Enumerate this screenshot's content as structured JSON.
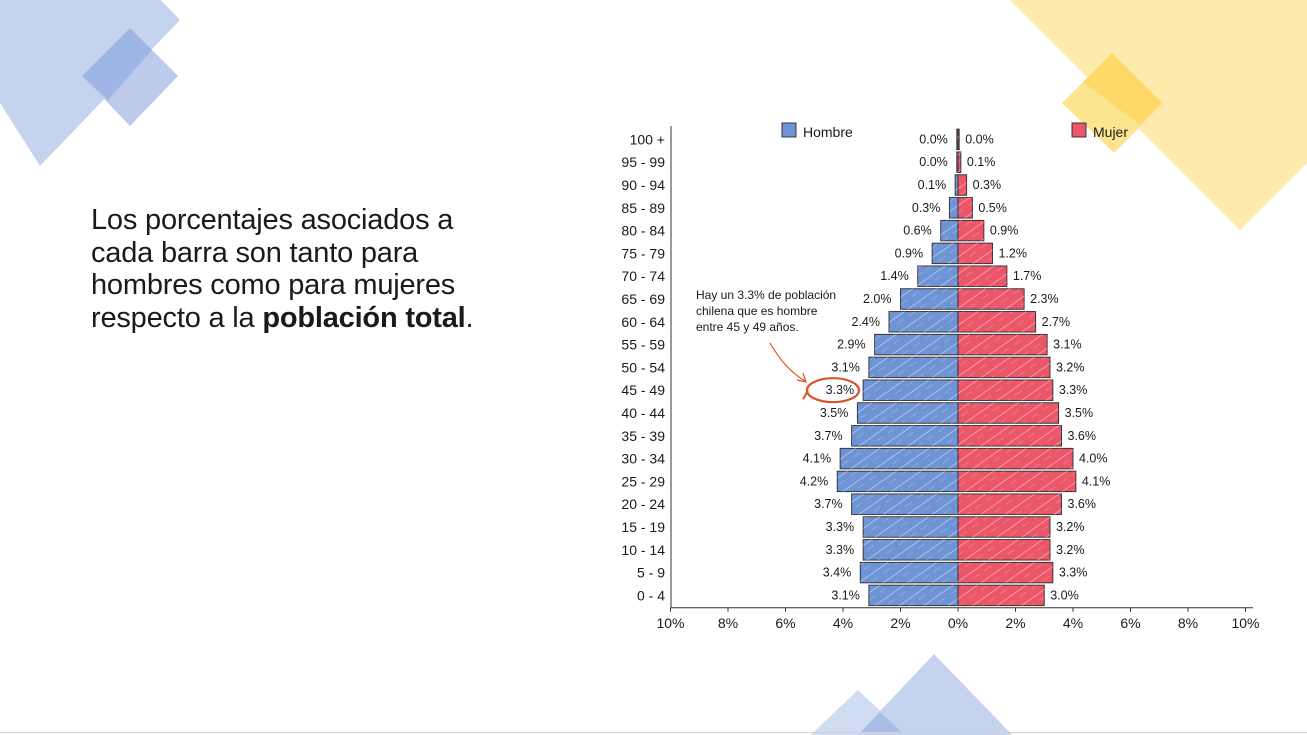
{
  "slide": {
    "text_before": "Los porcentajes asociados a cada barra son tanto para hombres como para mujeres respecto a la ",
    "text_bold": "población total",
    "text_after": "."
  },
  "colors": {
    "male": "#6f94d6",
    "female": "#eb5668",
    "deco_blue": "#a9bde6",
    "deco_blue_dark": "#8aa5de",
    "deco_yellow": "#fde697",
    "deco_yellow_dark": "#fed96a",
    "annotation": "#e0502a"
  },
  "chart_data": {
    "type": "bar",
    "orientation": "horizontal-pyramid",
    "categories": [
      "0 - 4",
      "5 - 9",
      "10 - 14",
      "15 - 19",
      "20 - 24",
      "25 - 29",
      "30 - 34",
      "35 - 39",
      "40 - 44",
      "45 - 49",
      "50 - 54",
      "55 - 59",
      "60 - 64",
      "65 - 69",
      "70 - 74",
      "75 - 79",
      "80 - 84",
      "85 - 89",
      "90 - 94",
      "95 - 99",
      "100 +"
    ],
    "series": [
      {
        "name": "Hombre",
        "values": [
          3.1,
          3.4,
          3.3,
          3.3,
          3.7,
          4.2,
          4.1,
          3.7,
          3.5,
          3.3,
          3.1,
          2.9,
          2.4,
          2.0,
          1.4,
          0.9,
          0.6,
          0.3,
          0.1,
          0.0,
          0.0
        ],
        "labels": [
          "3.1%",
          "3.4%",
          "3.3%",
          "3.3%",
          "3.7%",
          "4.2%",
          "4.1%",
          "3.7%",
          "3.5%",
          "3.3%",
          "3.1%",
          "2.9%",
          "2.4%",
          "2.0%",
          "1.4%",
          "0.9%",
          "0.6%",
          "0.3%",
          "0.1%",
          "0.0%",
          "0.0%"
        ]
      },
      {
        "name": "Mujer",
        "values": [
          3.0,
          3.3,
          3.2,
          3.2,
          3.6,
          4.1,
          4.0,
          3.6,
          3.5,
          3.3,
          3.2,
          3.1,
          2.7,
          2.3,
          1.7,
          1.2,
          0.9,
          0.5,
          0.3,
          0.1,
          0.0
        ],
        "labels": [
          "3.0%",
          "3.3%",
          "3.2%",
          "3.2%",
          "3.6%",
          "4.1%",
          "4.0%",
          "3.6%",
          "3.5%",
          "3.3%",
          "3.2%",
          "3.1%",
          "2.7%",
          "2.3%",
          "1.7%",
          "1.2%",
          "0.9%",
          "0.5%",
          "0.3%",
          "0.1%",
          "0.0%"
        ]
      }
    ],
    "xlim": [
      -10,
      10
    ],
    "xticks": [
      -10,
      -8,
      -6,
      -4,
      -2,
      0,
      2,
      4,
      6,
      8,
      10
    ],
    "xtick_labels": [
      "10%",
      "8%",
      "6%",
      "4%",
      "2%",
      "0%",
      "2%",
      "4%",
      "6%",
      "8%",
      "10%"
    ],
    "legend": "top",
    "grid": false,
    "annotation": {
      "lines": [
        "Hay  un 3.3% de población",
        "chilena que es hombre",
        "entre 45 y  49 años."
      ],
      "target_category": "45 - 49",
      "target_series": "Hombre"
    }
  }
}
